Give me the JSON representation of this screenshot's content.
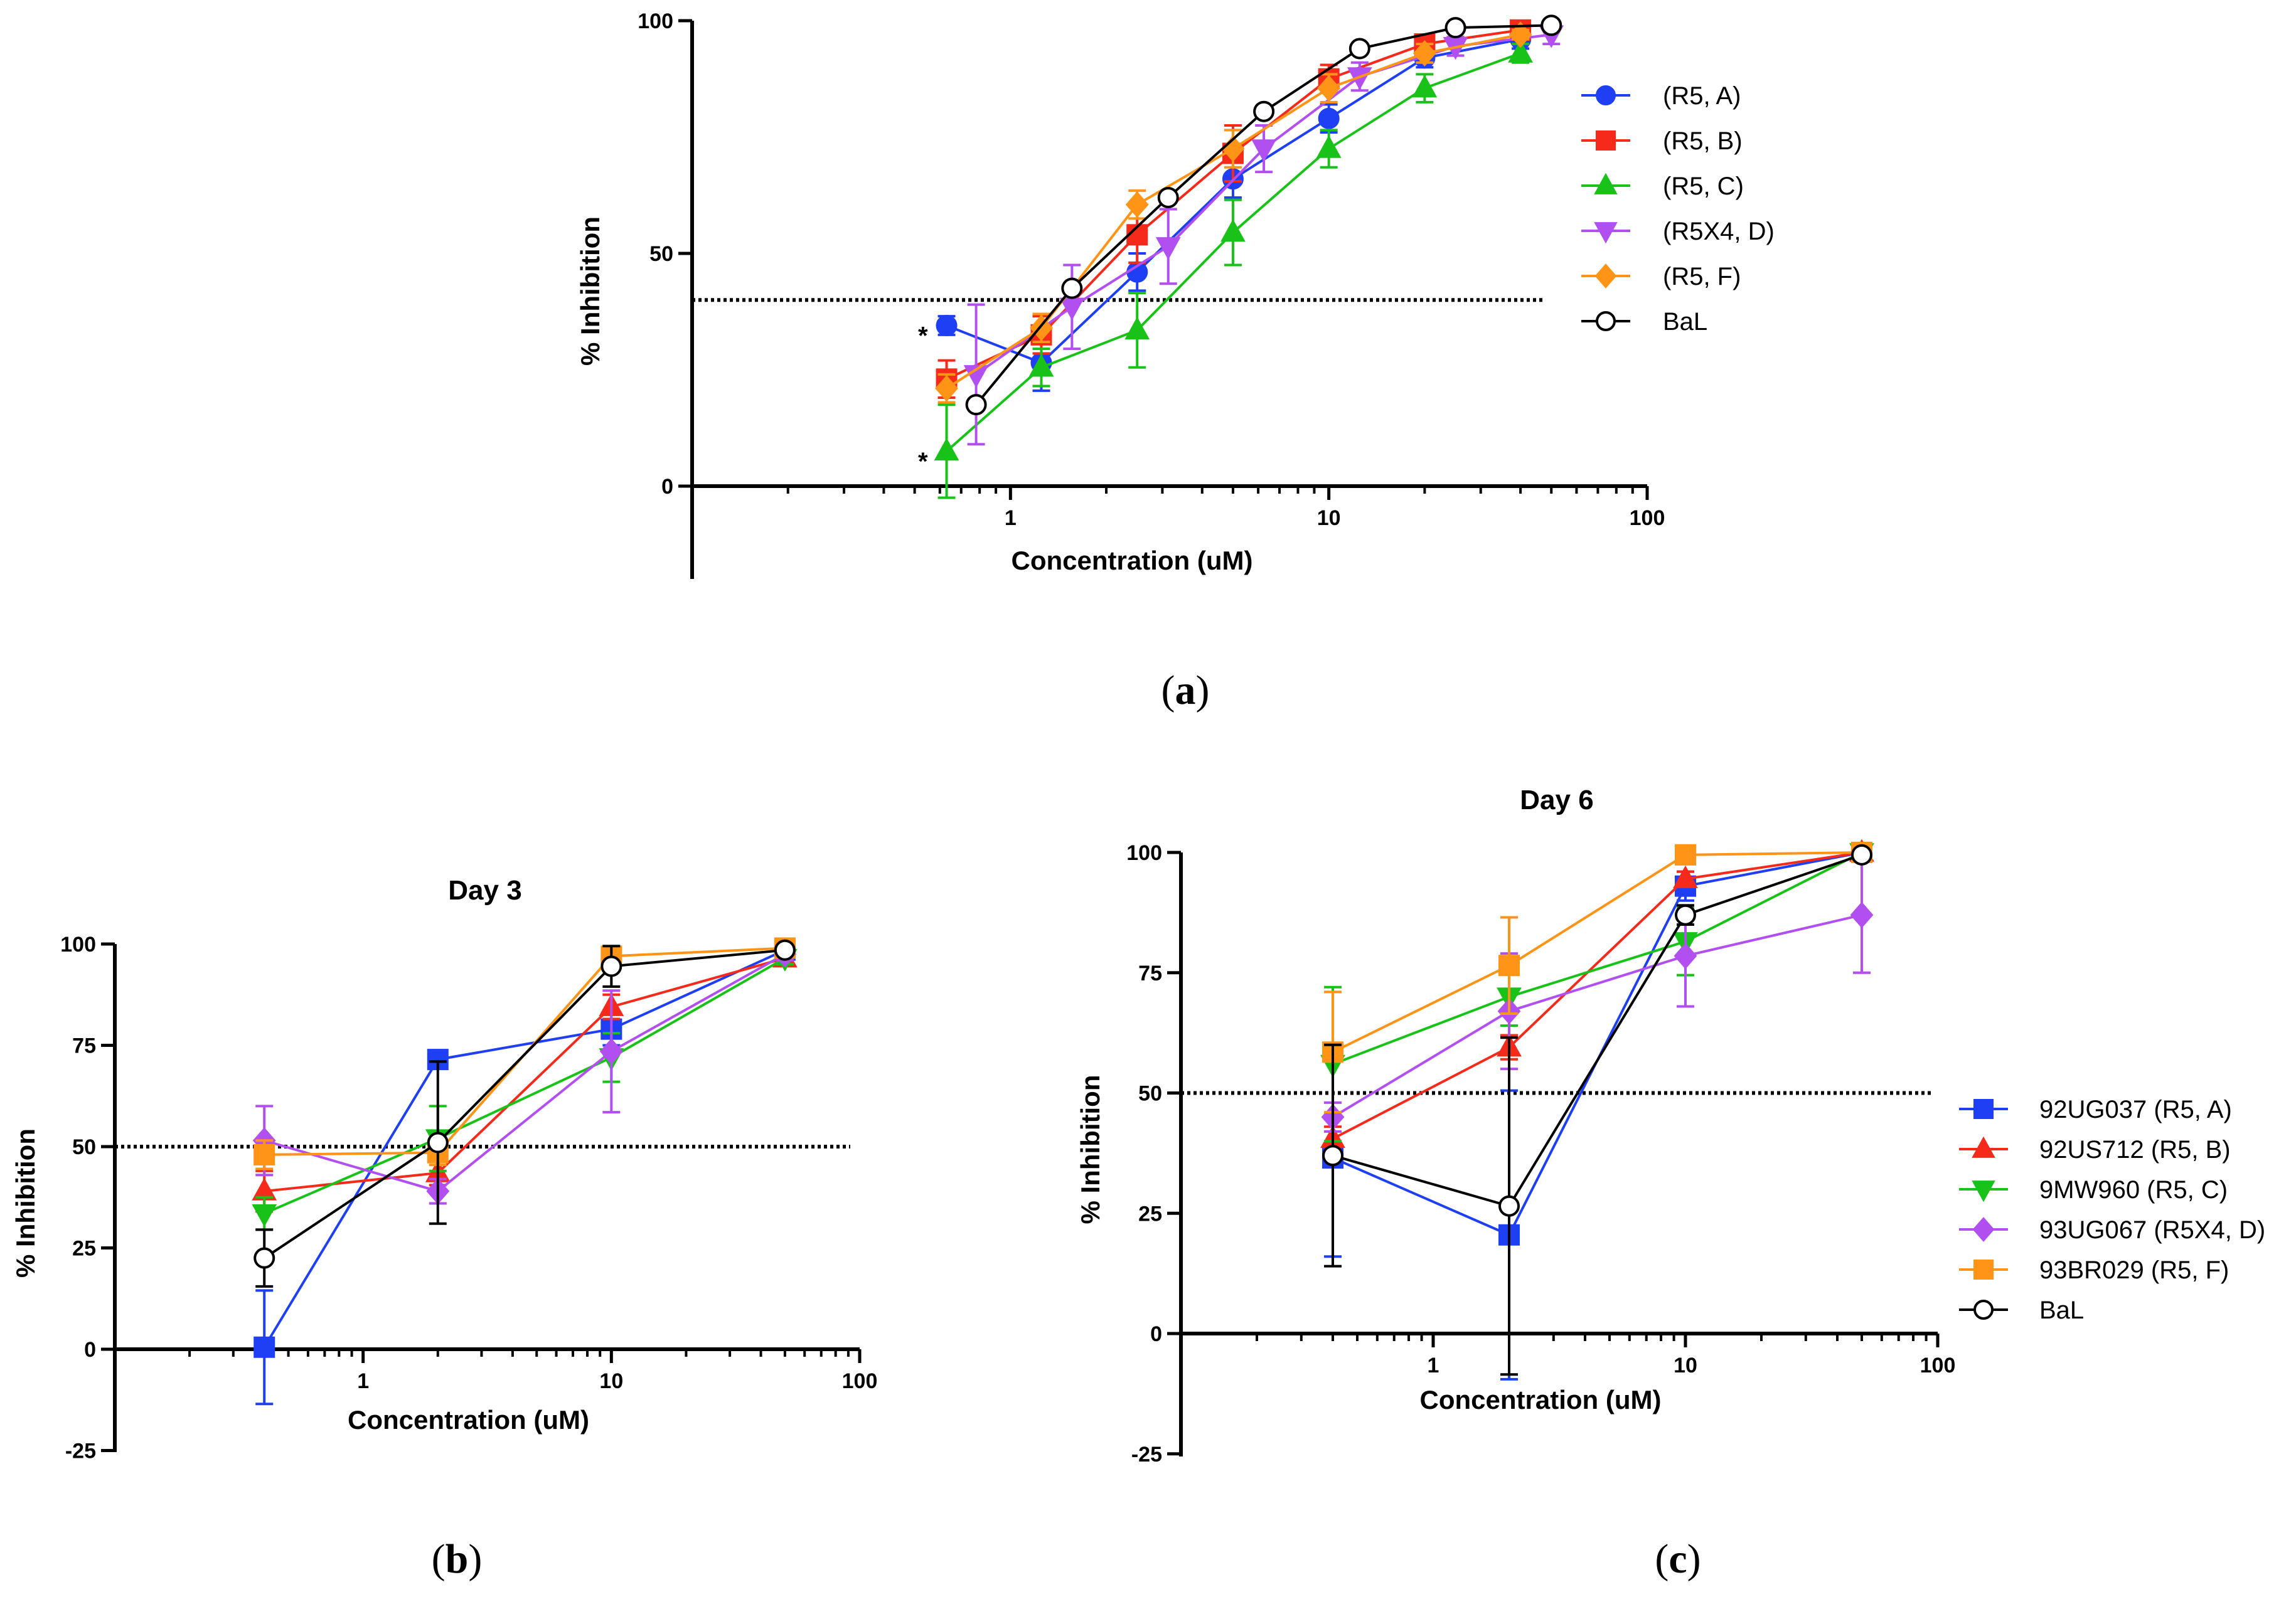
{
  "chart_data": [
    {
      "panel": "a",
      "panel_label": {
        "open": "(",
        "letter": "a",
        "close": ")"
      },
      "type": "line",
      "title": "",
      "xlabel": "Concentration (uM)",
      "ylabel": "% Inhibition",
      "xscale": "log",
      "xlim": [
        0.1,
        100
      ],
      "ylim": [
        -20,
        100
      ],
      "xticks": [
        1,
        10,
        100
      ],
      "yticks": [
        0,
        50,
        100
      ],
      "reference_line": 40,
      "legend_position": "right",
      "annotations": [
        {
          "text": "*",
          "x": 0.63,
          "y": 34
        },
        {
          "text": "*",
          "x": 0.63,
          "y": 7
        }
      ],
      "series": [
        {
          "name": "(R5, A)",
          "color": "#1f3ff5",
          "marker": "circle",
          "filled": true,
          "x": [
            0.63,
            1.25,
            2.5,
            5,
            10,
            20,
            40
          ],
          "y": [
            34.5,
            26.5,
            46,
            66,
            79,
            92,
            96
          ],
          "err": [
            2,
            6,
            4,
            4,
            3,
            2,
            2
          ]
        },
        {
          "name": "(R5, B)",
          "color": "#f52a1a",
          "marker": "square",
          "filled": true,
          "x": [
            0.63,
            1.25,
            2.5,
            5,
            10,
            20,
            40
          ],
          "y": [
            23,
            32.5,
            54,
            71.5,
            87.5,
            95,
            98
          ],
          "err": [
            4,
            4,
            6,
            6,
            3,
            2,
            1
          ]
        },
        {
          "name": "(R5, C)",
          "color": "#19c219",
          "marker": "triangle-up",
          "filled": true,
          "x": [
            0.63,
            1.25,
            2.5,
            5,
            10,
            20,
            40
          ],
          "y": [
            7.5,
            25.5,
            33.5,
            54.5,
            72.5,
            85.5,
            93
          ],
          "err": [
            10,
            4,
            8,
            7,
            4,
            3,
            2
          ]
        },
        {
          "name": "(R5X4, D)",
          "color": "#b24ff0",
          "marker": "triangle-down",
          "filled": true,
          "x": [
            0.78,
            1.56,
            3.13,
            6.25,
            12.5,
            25,
            50
          ],
          "y": [
            24,
            38.5,
            51.5,
            72.5,
            88,
            94.5,
            97
          ],
          "err": [
            15,
            9,
            8,
            5,
            3,
            2,
            2
          ]
        },
        {
          "name": "(R5, F)",
          "color": "#ff9416",
          "marker": "diamond",
          "filled": true,
          "x": [
            0.63,
            1.25,
            2.5,
            5,
            10,
            20,
            40
          ],
          "y": [
            21,
            34,
            60.5,
            72.5,
            85.5,
            93,
            97
          ],
          "err": [
            3,
            3,
            3,
            4,
            3,
            2,
            1
          ]
        },
        {
          "name": "BaL",
          "color": "#000000",
          "marker": "circle",
          "filled": false,
          "x": [
            0.78,
            1.56,
            3.13,
            6.25,
            12.5,
            25,
            50
          ],
          "y": [
            17.5,
            42.5,
            62,
            80.5,
            94,
            98.5,
            99
          ],
          "err": [
            0,
            0,
            0,
            0,
            0,
            0,
            0
          ]
        }
      ]
    },
    {
      "panel": "b",
      "panel_label": {
        "open": "(",
        "letter": "b",
        "close": ")"
      },
      "type": "line",
      "title": "Day 3",
      "xlabel": "Concentration (uM)",
      "ylabel": "% Inhibition",
      "xscale": "log",
      "xlim": [
        0.1,
        100
      ],
      "ylim": [
        -25,
        100
      ],
      "xticks": [
        1,
        10,
        100
      ],
      "yticks": [
        -25,
        0,
        25,
        50,
        75,
        100
      ],
      "reference_line": 50,
      "series": [
        {
          "name": "92UG037 (R5, A)",
          "color": "#1f3ff5",
          "marker": "square",
          "filled": true,
          "x": [
            0.4,
            2,
            10,
            50
          ],
          "y": [
            0.5,
            71.5,
            79,
            98.5
          ],
          "err": [
            14,
            2,
            4,
            1.5
          ]
        },
        {
          "name": "92US712  (R5, B)",
          "color": "#f52a1a",
          "marker": "triangle-up",
          "filled": true,
          "x": [
            0.4,
            2,
            10,
            50
          ],
          "y": [
            39,
            43.5,
            84.5,
            96.5
          ],
          "err": [
            5,
            3,
            3,
            1.5
          ]
        },
        {
          "name": "9MW960 (R5, C)",
          "color": "#19c219",
          "marker": "triangle-down",
          "filled": true,
          "x": [
            0.4,
            2,
            10,
            50
          ],
          "y": [
            33.5,
            52,
            72,
            96.5
          ],
          "err": [
            4,
            8,
            6,
            1.5
          ]
        },
        {
          "name": "93UG067 (R5X4, D)",
          "color": "#b24ff0",
          "marker": "diamond",
          "filled": true,
          "x": [
            0.4,
            2,
            10,
            50
          ],
          "y": [
            51.5,
            39,
            73.5,
            97.5
          ],
          "err": [
            8.5,
            3,
            15,
            1.5
          ]
        },
        {
          "name": "93BR029 (R5, F)",
          "color": "#ff9416",
          "marker": "square",
          "filled": true,
          "x": [
            0.4,
            2,
            10,
            50
          ],
          "y": [
            48,
            48.5,
            97,
            99
          ],
          "err": [
            3.5,
            3,
            2,
            1
          ]
        },
        {
          "name": "BaL",
          "color": "#000000",
          "marker": "circle",
          "filled": false,
          "x": [
            0.4,
            2,
            10,
            50
          ],
          "y": [
            22.5,
            51,
            94.5,
            98.5
          ],
          "err": [
            7,
            20,
            5,
            1
          ]
        }
      ]
    },
    {
      "panel": "c",
      "panel_label": {
        "open": "(",
        "letter": "c",
        "close": ")"
      },
      "type": "line",
      "title": "Day 6",
      "xlabel": "Concentration (uM)",
      "ylabel": "% Inhibition",
      "xscale": "log",
      "xlim": [
        0.1,
        100
      ],
      "ylim": [
        -25,
        100
      ],
      "xticks": [
        1,
        10,
        100
      ],
      "yticks": [
        -25,
        0,
        25,
        50,
        75,
        100
      ],
      "reference_line": 50,
      "legend_position": "right",
      "series": [
        {
          "name": "92UG037 (R5, A)",
          "color": "#1f3ff5",
          "marker": "square",
          "filled": true,
          "x": [
            0.4,
            2,
            10,
            50
          ],
          "y": [
            36.5,
            20.5,
            93,
            100
          ],
          "err": [
            20.5,
            30,
            3,
            0.5
          ]
        },
        {
          "name": "92US712  (R5, B)",
          "color": "#f52a1a",
          "marker": "triangle-up",
          "filled": true,
          "x": [
            0.4,
            2,
            10,
            50
          ],
          "y": [
            40.5,
            59.5,
            94.5,
            100
          ],
          "err": [
            2.5,
            2.5,
            1.5,
            0.5
          ]
        },
        {
          "name": "9MW960 (R5, C)",
          "color": "#19c219",
          "marker": "triangle-down",
          "filled": true,
          "x": [
            0.4,
            2,
            10,
            50
          ],
          "y": [
            56,
            70,
            81.5,
            100
          ],
          "err": [
            16,
            6,
            7,
            0.5
          ]
        },
        {
          "name": "93UG067 (R5X4, D)",
          "color": "#b24ff0",
          "marker": "diamond",
          "filled": true,
          "x": [
            0.4,
            2,
            10,
            50
          ],
          "y": [
            45,
            67,
            78.5,
            87
          ],
          "err": [
            3,
            12,
            10.5,
            12
          ]
        },
        {
          "name": "93BR029 (R5, F)",
          "color": "#ff9416",
          "marker": "square",
          "filled": true,
          "x": [
            0.4,
            2,
            10,
            50
          ],
          "y": [
            58.5,
            76.5,
            99.5,
            100
          ],
          "err": [
            12.5,
            10,
            1,
            0.5
          ]
        },
        {
          "name": "BaL",
          "color": "#000000",
          "marker": "circle",
          "filled": false,
          "x": [
            0.4,
            2,
            10,
            50
          ],
          "y": [
            37,
            26.5,
            87,
            99.5
          ],
          "err": [
            23,
            35,
            2,
            0.5
          ]
        }
      ]
    }
  ]
}
